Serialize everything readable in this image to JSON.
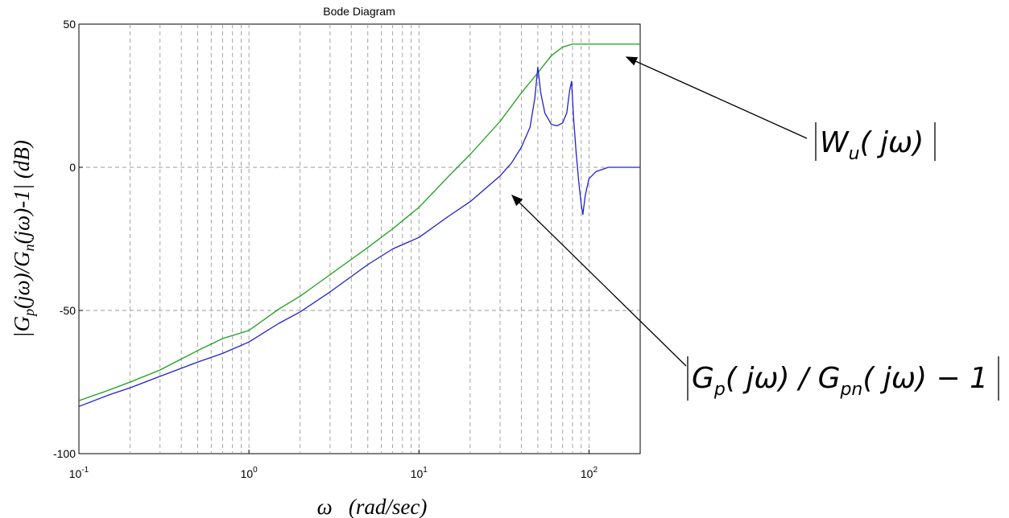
{
  "chart_data": {
    "type": "line",
    "title": "Bode Diagram",
    "xlabel": "ω   (rad/sec)",
    "ylabel": "|Gp(jω)/Gn(jω)-1| (dB)",
    "ylabel_parts": {
      "t1": "|G",
      "s1": "p",
      "t2": "(jω)/G",
      "s2": "n",
      "t3": "(jω)-1| (dB)"
    },
    "xscale": "log",
    "xlim": [
      0.1,
      200
    ],
    "ylim": [
      -100,
      50
    ],
    "grid": true,
    "x_ticks": [
      {
        "base": "10",
        "exp": "-1",
        "value": 0.1
      },
      {
        "base": "10",
        "exp": "0",
        "value": 1
      },
      {
        "base": "10",
        "exp": "1",
        "value": 10
      },
      {
        "base": "10",
        "exp": "2",
        "value": 100
      }
    ],
    "y_ticks": [
      {
        "label": "50",
        "value": 50
      },
      {
        "label": "0",
        "value": 0
      },
      {
        "label": "-50",
        "value": -50
      },
      {
        "label": "-100",
        "value": -100
      }
    ],
    "series": [
      {
        "color": "#1aa01a",
        "x": [
          0.1,
          0.15,
          0.2,
          0.3,
          0.5,
          0.7,
          1,
          1.5,
          2,
          3,
          5,
          7,
          10,
          15,
          20,
          30,
          40,
          50,
          60,
          70,
          80,
          90,
          100,
          150,
          200
        ],
        "y": [
          -81.5,
          -77.8,
          -75,
          -70.8,
          -64,
          -59.8,
          -57,
          -49.5,
          -45,
          -37.5,
          -28,
          -21.5,
          -14,
          -3,
          4.5,
          16,
          26,
          33,
          39,
          42,
          43,
          43,
          43,
          43,
          43
        ]
      },
      {
        "color": "#2020d0",
        "x": [
          0.1,
          0.15,
          0.2,
          0.3,
          0.5,
          0.7,
          1,
          1.5,
          2,
          3,
          5,
          7,
          10,
          15,
          20,
          30,
          35,
          40,
          45,
          48,
          50,
          52,
          55,
          60,
          65,
          70,
          74,
          77,
          79,
          81,
          84,
          87,
          90,
          92,
          95,
          100,
          110,
          130,
          160,
          200
        ],
        "y": [
          -83.5,
          -79.5,
          -77,
          -73,
          -68,
          -65,
          -61,
          -54.5,
          -50.5,
          -43.5,
          -34,
          -28.5,
          -24.5,
          -17,
          -12,
          -3,
          1.5,
          7,
          14,
          24,
          35,
          26,
          19,
          15,
          14.5,
          15.5,
          19,
          27,
          30,
          18,
          5,
          -5,
          -13,
          -16.5,
          -10,
          -4,
          -1.5,
          0,
          0,
          0
        ]
      }
    ],
    "annotations": [
      {
        "id": "wu",
        "text": "|Wu(jω)|",
        "target_series": 0
      },
      {
        "id": "gp",
        "text": "|Gp(jω)/Gpn(jω)−1|",
        "target_series": 1
      }
    ]
  },
  "annotations_text": {
    "wu": {
      "w": "W",
      "u": "u",
      "rest": "( jω)"
    },
    "gp": {
      "g1": "G",
      "p": "p",
      "mid": "( jω) / G",
      "pn": "pn",
      "rest": "( jω) − 1"
    }
  }
}
